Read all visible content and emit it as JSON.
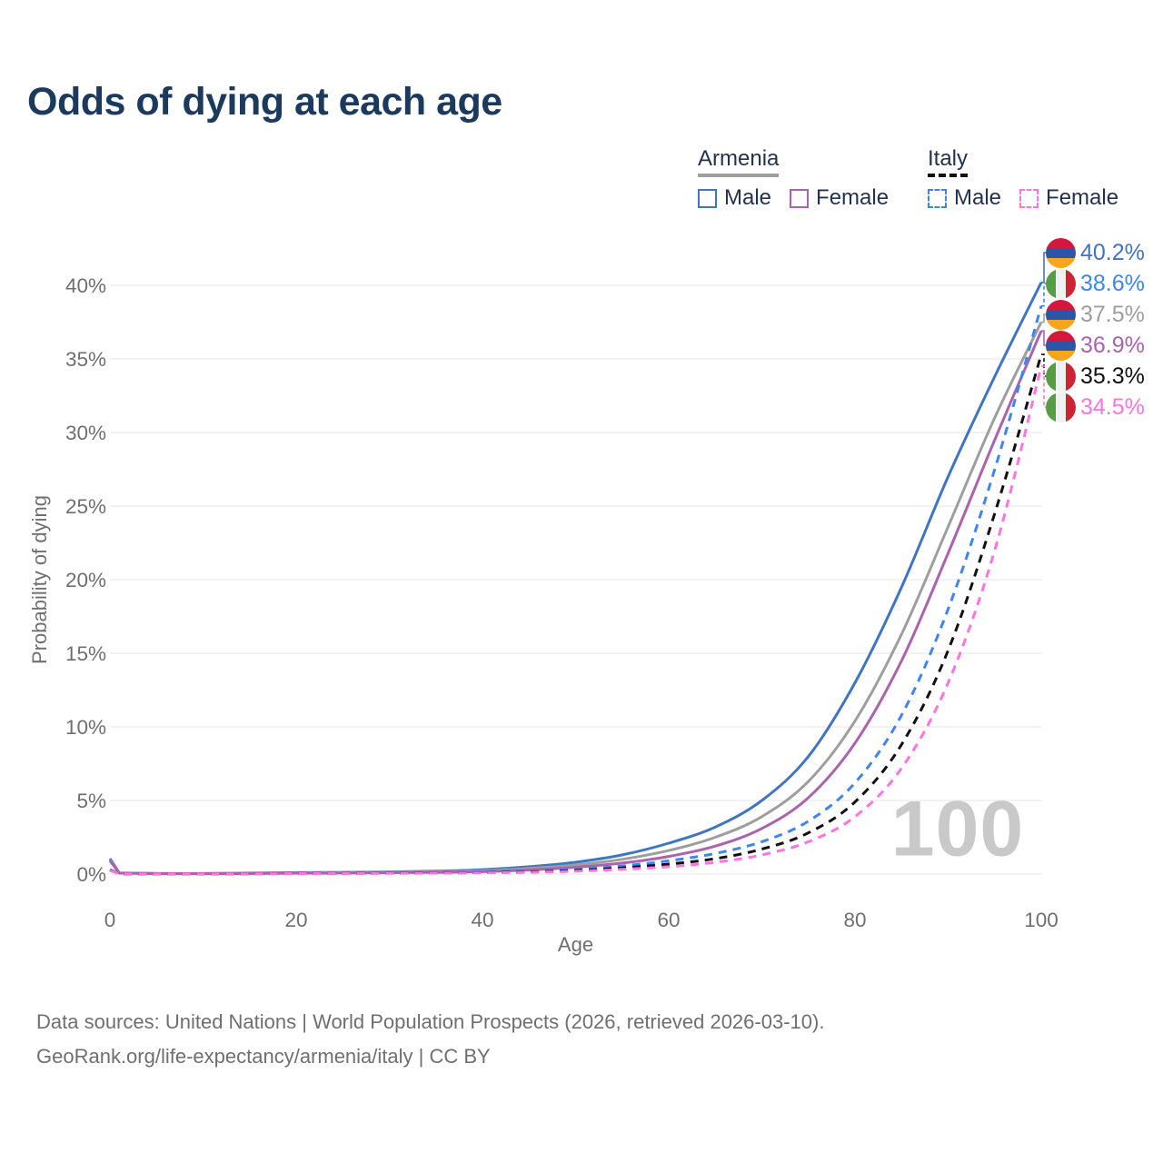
{
  "title": "Odds of dying at each age",
  "watermark": "100",
  "legend": {
    "groups": [
      {
        "name": "Armenia",
        "items": [
          {
            "label": "Male"
          },
          {
            "label": "Female"
          }
        ]
      },
      {
        "name": "Italy",
        "items": [
          {
            "label": "Male"
          },
          {
            "label": "Female"
          }
        ]
      }
    ]
  },
  "footer": {
    "line1": "Data sources: United Nations | World Population Prospects (2026, retrieved 2026-03-10).",
    "line2": "GeoRank.org/life-expectancy/armenia/italy | CC BY"
  },
  "colors": {
    "title_text": "#1c3a5e",
    "legend_text": "#22324f",
    "tick_text": "#6f6f6f",
    "gridline": "#ebebeb",
    "watermark": "#c9c9c9"
  },
  "flags": {
    "armenia": {
      "direction": "180deg",
      "stripes": [
        "#d6173d",
        "#2b55a7",
        "#f7a51b"
      ]
    },
    "italy": {
      "direction": "90deg",
      "stripes": [
        "#579d44",
        "#f1f1ef",
        "#cd2435"
      ]
    }
  },
  "chart_data": {
    "type": "line",
    "title": "Odds of dying at each age",
    "xlabel": "Age",
    "ylabel": "Probability of dying",
    "xlim": [
      0,
      100
    ],
    "ylim": [
      0,
      42
    ],
    "x_ticks": [
      0,
      20,
      40,
      60,
      80,
      100
    ],
    "y_ticks": [
      0,
      5,
      10,
      15,
      20,
      25,
      30,
      35,
      40
    ],
    "y_tick_suffix": "%",
    "grid": "horizontal",
    "legend_position": "top-right",
    "x": [
      0,
      1,
      5,
      10,
      15,
      20,
      25,
      30,
      35,
      40,
      45,
      50,
      55,
      60,
      65,
      70,
      75,
      80,
      85,
      90,
      95,
      100
    ],
    "series": [
      {
        "id": "armenia-male",
        "country": "Armenia",
        "sex": "Male",
        "color": "#4074c4",
        "dashed": false,
        "values": [
          1.05,
          0.08,
          0.04,
          0.04,
          0.07,
          0.1,
          0.12,
          0.15,
          0.2,
          0.3,
          0.5,
          0.8,
          1.3,
          2.1,
          3.2,
          5.0,
          8.0,
          13.0,
          19.5,
          27.0,
          33.8,
          40.2
        ]
      },
      {
        "id": "armenia-both",
        "country": "Armenia",
        "sex": "Both sexes",
        "color": "#9e9e9e",
        "dashed": false,
        "values": [
          0.95,
          0.07,
          0.035,
          0.035,
          0.05,
          0.08,
          0.1,
          0.12,
          0.16,
          0.22,
          0.38,
          0.62,
          1.0,
          1.6,
          2.5,
          3.9,
          6.3,
          10.4,
          16.3,
          23.6,
          31.0,
          37.5
        ]
      },
      {
        "id": "armenia-female",
        "country": "Armenia",
        "sex": "Female",
        "color": "#ab63ad",
        "dashed": false,
        "values": [
          0.9,
          0.06,
          0.03,
          0.03,
          0.04,
          0.06,
          0.07,
          0.09,
          0.12,
          0.16,
          0.28,
          0.46,
          0.75,
          1.2,
          1.9,
          3.1,
          5.2,
          8.9,
          14.5,
          21.8,
          29.5,
          36.9
        ]
      },
      {
        "id": "italy-male",
        "country": "Italy",
        "sex": "Male",
        "color": "#3d85f2",
        "dashed": true,
        "values": [
          0.3,
          0.02,
          0.01,
          0.01,
          0.03,
          0.05,
          0.06,
          0.07,
          0.09,
          0.13,
          0.2,
          0.33,
          0.55,
          0.9,
          1.4,
          2.2,
          3.6,
          6.2,
          10.8,
          18.0,
          27.5,
          38.6
        ]
      },
      {
        "id": "italy-both",
        "country": "Italy",
        "sex": "Both sexes",
        "color": "#111111",
        "dashed": true,
        "values": [
          0.27,
          0.02,
          0.01,
          0.01,
          0.02,
          0.04,
          0.05,
          0.06,
          0.08,
          0.1,
          0.15,
          0.25,
          0.42,
          0.68,
          1.05,
          1.7,
          2.8,
          4.9,
          8.8,
          15.2,
          24.5,
          35.3
        ]
      },
      {
        "id": "italy-female",
        "country": "Italy",
        "sex": "Female",
        "color": "#ff74e0",
        "dashed": true,
        "values": [
          0.25,
          0.02,
          0.01,
          0.01,
          0.02,
          0.03,
          0.04,
          0.05,
          0.06,
          0.08,
          0.12,
          0.19,
          0.32,
          0.5,
          0.8,
          1.3,
          2.2,
          3.9,
          7.2,
          13.0,
          22.0,
          34.5
        ]
      }
    ],
    "end_labels": [
      {
        "series": "armenia-male",
        "text": "40.2%",
        "flag": "armenia"
      },
      {
        "series": "italy-male",
        "text": "38.6%",
        "flag": "italy"
      },
      {
        "series": "armenia-both",
        "text": "37.5%",
        "flag": "armenia"
      },
      {
        "series": "armenia-female",
        "text": "36.9%",
        "flag": "armenia"
      },
      {
        "series": "italy-both",
        "text": "35.3%",
        "flag": "italy"
      },
      {
        "series": "italy-female",
        "text": "34.5%",
        "flag": "italy"
      }
    ]
  }
}
